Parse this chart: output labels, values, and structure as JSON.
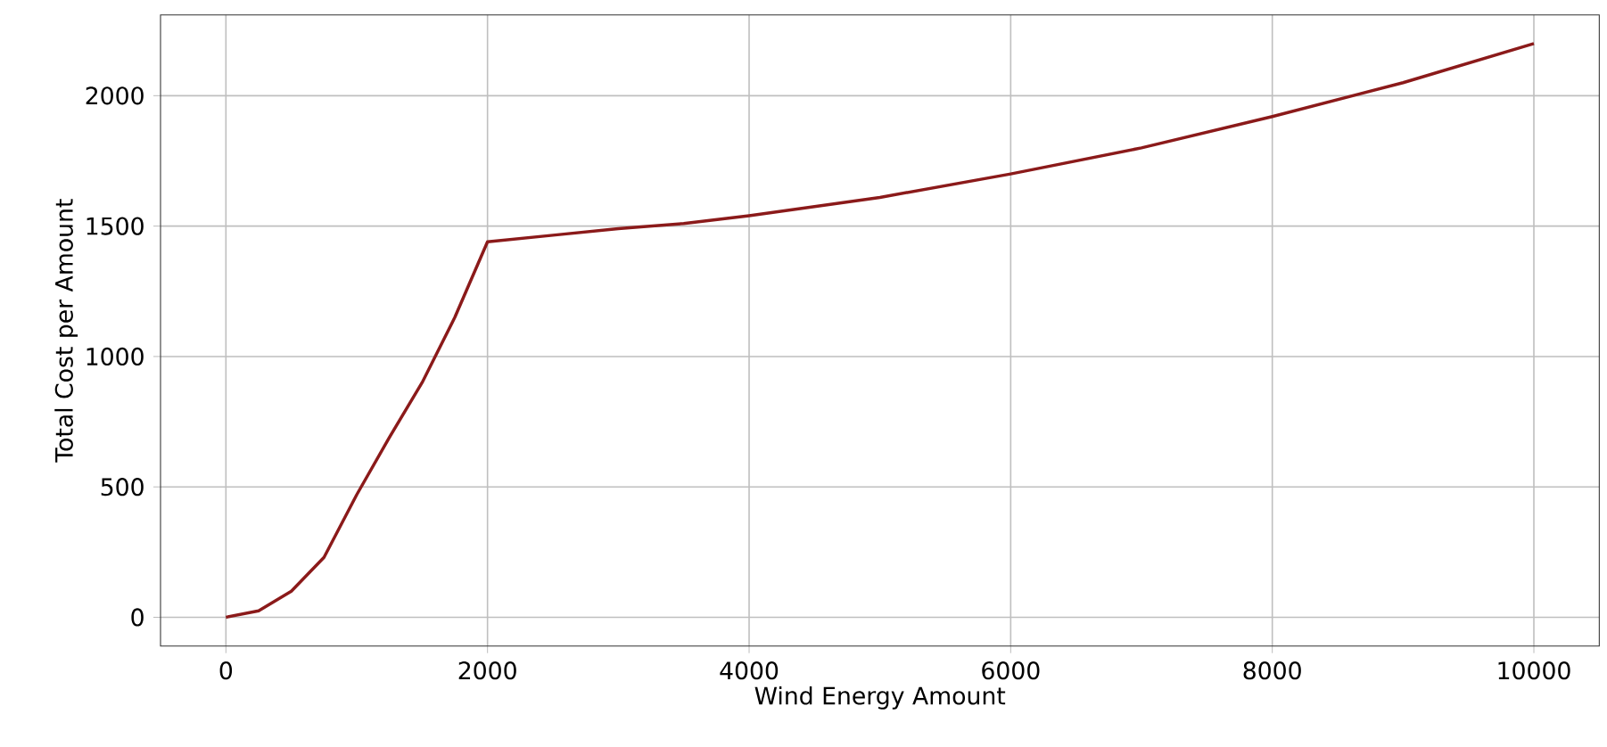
{
  "chart_data": {
    "type": "line",
    "xlabel": "Wind Energy Amount",
    "ylabel": "Total Cost per Amount",
    "x": [
      0,
      250,
      500,
      750,
      1000,
      1250,
      1500,
      1750,
      2000,
      2500,
      3000,
      3500,
      4000,
      5000,
      6000,
      7000,
      8000,
      9000,
      10000
    ],
    "series": [
      {
        "color": "#8b1a1a",
        "values": [
          0,
          25,
          100,
          230,
          470,
          690,
          900,
          1150,
          1440,
          1465,
          1490,
          1510,
          1540,
          1610,
          1700,
          1800,
          1920,
          2050,
          2200
        ]
      }
    ],
    "xlim": [
      -500,
      10500
    ],
    "ylim": [
      -110,
      2310
    ],
    "xticks": [
      0,
      2000,
      4000,
      6000,
      8000,
      10000
    ],
    "yticks": [
      0,
      500,
      1000,
      1500,
      2000
    ],
    "grid": true,
    "line_style": "solid",
    "marker": "none"
  }
}
